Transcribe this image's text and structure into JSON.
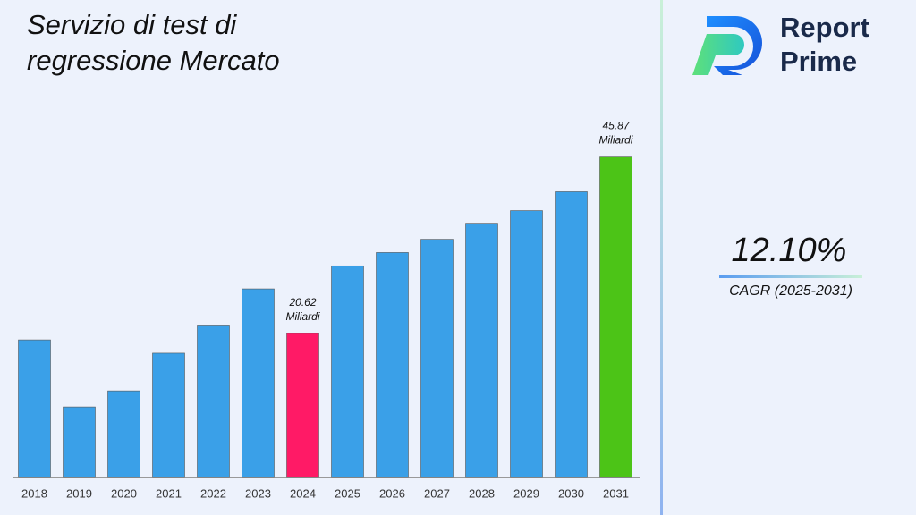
{
  "chart_data": {
    "type": "bar",
    "title": "Servizio di test di regressione Mercato",
    "categories": [
      "2018",
      "2019",
      "2020",
      "2021",
      "2022",
      "2023",
      "2024",
      "2025",
      "2026",
      "2027",
      "2028",
      "2029",
      "2030",
      "2031"
    ],
    "values": [
      19.7,
      10.1,
      12.4,
      17.8,
      21.7,
      27.0,
      20.62,
      30.3,
      32.2,
      34.1,
      36.4,
      38.2,
      40.9,
      45.87
    ],
    "value_labels": [
      null,
      null,
      null,
      null,
      null,
      null,
      "20.62 Miliardi",
      null,
      null,
      null,
      null,
      null,
      null,
      "45.87 Miliardi"
    ],
    "colors": [
      "#3aa0e8",
      "#3aa0e8",
      "#3aa0e8",
      "#3aa0e8",
      "#3aa0e8",
      "#3aa0e8",
      "#ff1a66",
      "#3aa0e8",
      "#3aa0e8",
      "#3aa0e8",
      "#3aa0e8",
      "#3aa0e8",
      "#3aa0e8",
      "#4cc417"
    ],
    "ylim": [
      0,
      48
    ],
    "cagr": {
      "value": "12.10%",
      "label": "CAGR (2025-2031)"
    },
    "brand": [
      "Report",
      "Prime"
    ]
  }
}
